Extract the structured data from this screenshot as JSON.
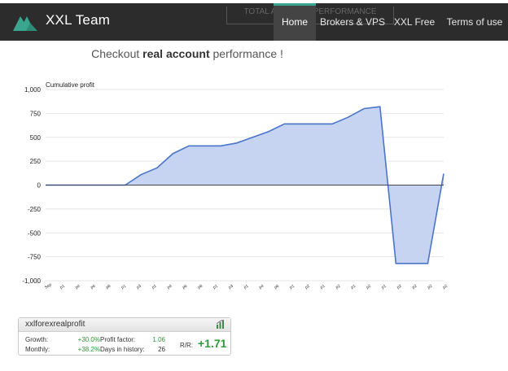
{
  "nav": {
    "brand": "XXL Team",
    "ghost_text": "TOTAL ACCOUNT PERFORMANCE",
    "items": [
      {
        "label": "Home",
        "active": true
      },
      {
        "label": "Brokers & VPS",
        "active": false
      },
      {
        "label": "XXL Free",
        "active": false
      },
      {
        "label": "Terms of use",
        "active": false
      }
    ]
  },
  "headline": {
    "prefix": "Checkout ",
    "bold": "real account",
    "suffix": " performance !"
  },
  "chart_data": {
    "type": "area",
    "title": "Cumulative profit",
    "ylim": [
      -1000,
      1000
    ],
    "yticks": [
      1000,
      750,
      500,
      250,
      0,
      -250,
      -500,
      -750,
      -1000
    ],
    "ytick_labels": [
      "1,000",
      "750",
      "500",
      "250",
      "0",
      "-250",
      "-500",
      "-750",
      "-1,000"
    ],
    "x_tick_labels": [
      "Sep",
      "p1",
      "p4",
      "p6",
      "p8",
      "p1",
      "p3",
      "p1",
      "p4",
      "p6",
      "p8",
      "p1",
      "p3",
      "p1",
      "p4",
      "p6",
      "p1",
      "p2",
      "p1",
      "p2",
      "p1",
      "p2",
      "p1",
      "p2",
      "p2",
      "p2",
      "p2"
    ],
    "grid": true,
    "fill_color": "#c6d4f2",
    "line_color": "#4a75c9",
    "series": [
      {
        "values": [
          0,
          0,
          0,
          0,
          0,
          0,
          110,
          180,
          330,
          410,
          410,
          410,
          440,
          500,
          560,
          640,
          640,
          640,
          640,
          710,
          800,
          820,
          -820,
          -820,
          -820,
          120
        ]
      }
    ]
  },
  "widget": {
    "account": "xxlforexrealprofit",
    "growth_label": "Growth:",
    "growth_value": "+30.0%",
    "monthly_label": "Monthly:",
    "monthly_value": "+38.2%",
    "pf_label": "Profit factor:",
    "pf_value": "1.06",
    "days_label": "Days in history:",
    "days_value": "26",
    "rr_label": "R/R:",
    "rr_value": "+1.71"
  }
}
